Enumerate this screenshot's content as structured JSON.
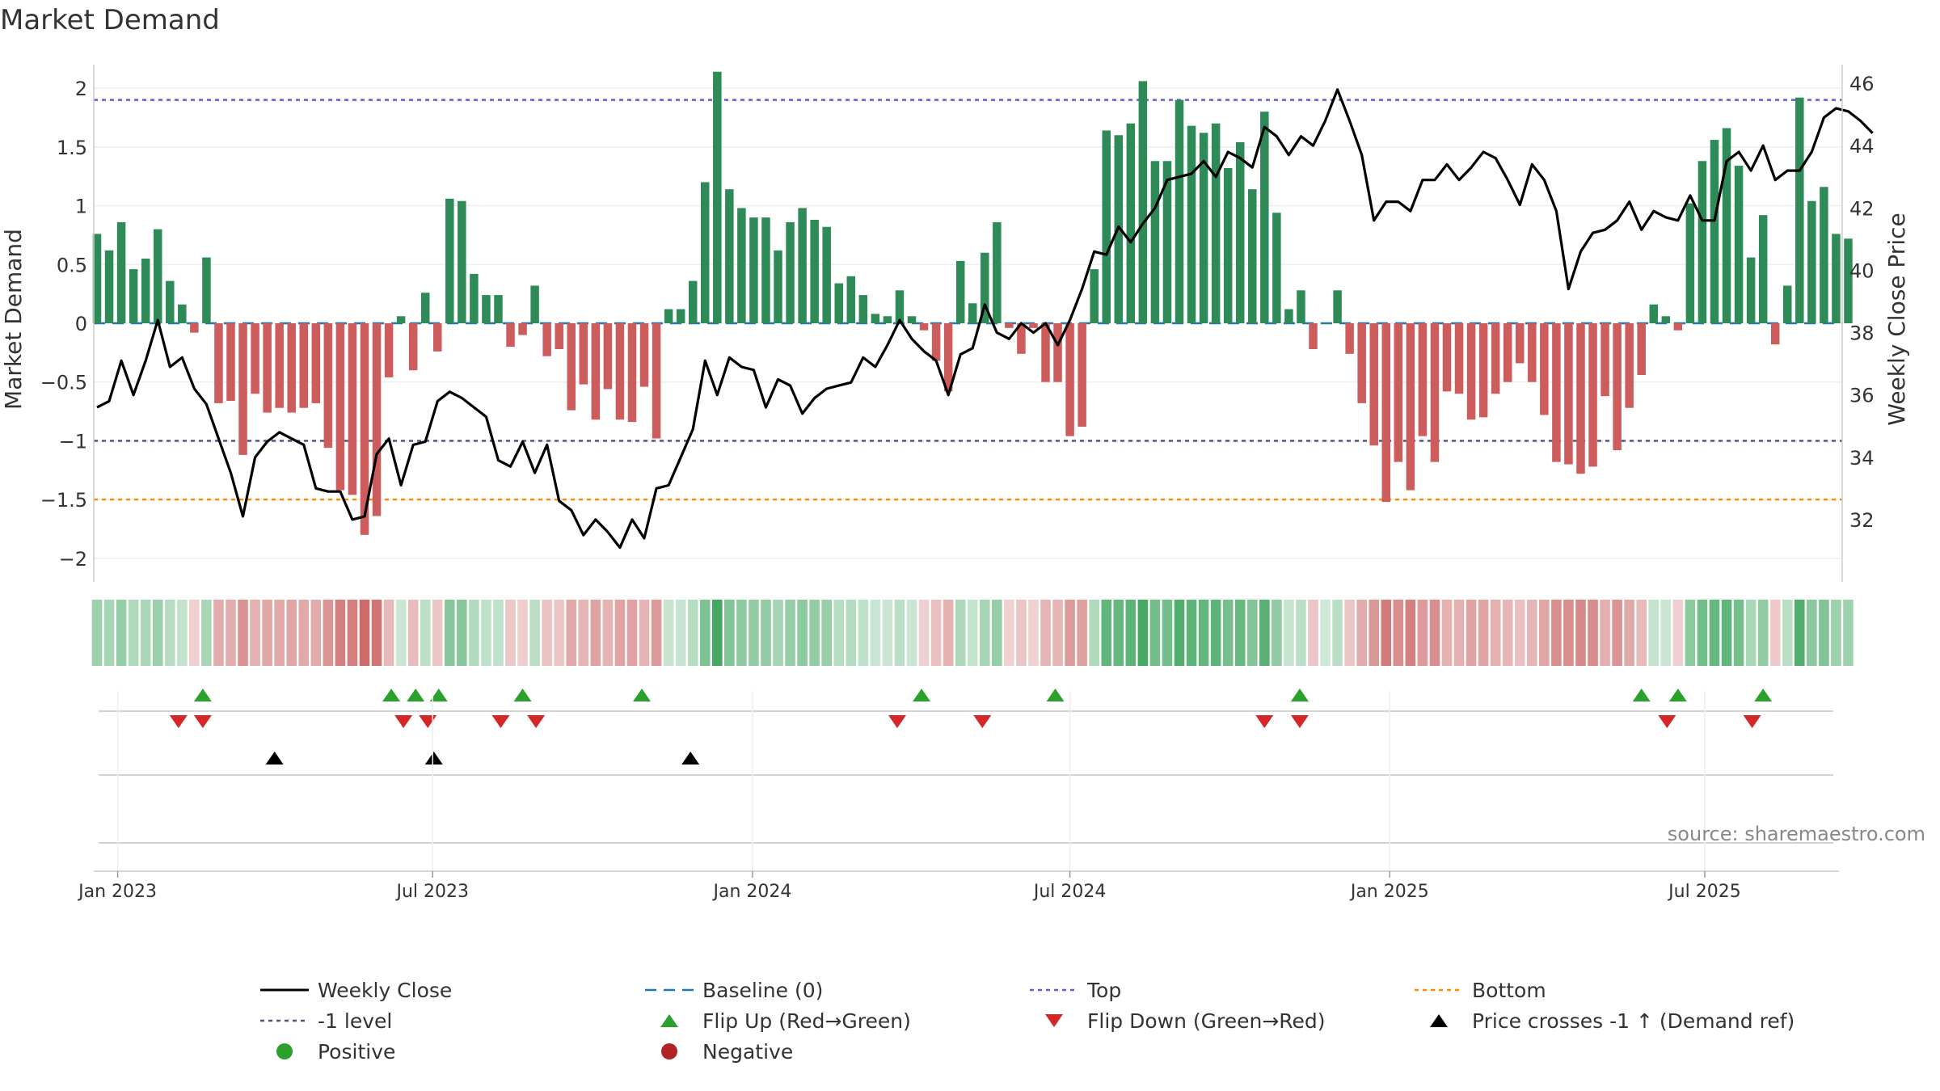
{
  "chart_data": {
    "type": "bar",
    "title": "Market Demand",
    "ylabel_left": "Market Demand",
    "ylabel_right": "Weekly Close Price",
    "source_text": "source: sharemaestro.com",
    "yleft_range": [
      -2.2,
      2.2
    ],
    "yleft_ticks": [
      {
        "v": 2,
        "label": "2"
      },
      {
        "v": 1.5,
        "label": "1.5"
      },
      {
        "v": 1,
        "label": "1"
      },
      {
        "v": 0.5,
        "label": "0.5"
      },
      {
        "v": 0,
        "label": "0"
      },
      {
        "v": -0.5,
        "label": "−0.5"
      },
      {
        "v": -1,
        "label": "−1"
      },
      {
        "v": -1.5,
        "label": "−1.5"
      },
      {
        "v": -2,
        "label": "−2"
      }
    ],
    "yright_range": [
      30.0,
      46.6
    ],
    "yright_ticks": [
      {
        "v": 46,
        "label": "46"
      },
      {
        "v": 44,
        "label": "44"
      },
      {
        "v": 42,
        "label": "42"
      },
      {
        "v": 40,
        "label": "40"
      },
      {
        "v": 38,
        "label": "38"
      },
      {
        "v": 36,
        "label": "36"
      },
      {
        "v": 34,
        "label": "34"
      },
      {
        "v": 32,
        "label": "32"
      }
    ],
    "x_ticks": [
      {
        "week": 1.7,
        "label": "Jan 2023"
      },
      {
        "week": 27.6,
        "label": "Jul 2023"
      },
      {
        "week": 53.9,
        "label": "Jan 2024"
      },
      {
        "week": 80.0,
        "label": "Jul 2024"
      },
      {
        "week": 106.3,
        "label": "Jan 2025"
      },
      {
        "week": 132.2,
        "label": "Jul 2025"
      }
    ],
    "reference_lines": {
      "top": 1.9,
      "bottom": -1.5,
      "minus_one": -1,
      "baseline": 0
    },
    "demand": [
      0.76,
      0.62,
      0.86,
      0.46,
      0.55,
      0.8,
      0.36,
      0.16,
      -0.08,
      0.56,
      -0.68,
      -0.66,
      -1.12,
      -0.6,
      -0.76,
      -0.72,
      -0.76,
      -0.72,
      -0.68,
      -1.06,
      -1.42,
      -1.46,
      -1.8,
      -1.64,
      -0.46,
      0.06,
      -0.4,
      0.26,
      -0.24,
      1.06,
      1.04,
      0.42,
      0.24,
      0.24,
      -0.2,
      -0.1,
      0.32,
      -0.28,
      -0.22,
      -0.74,
      -0.52,
      -0.82,
      -0.56,
      -0.82,
      -0.84,
      -0.54,
      -0.98,
      0.12,
      0.12,
      0.36,
      1.2,
      2.14,
      1.14,
      0.98,
      0.9,
      0.9,
      0.62,
      0.86,
      0.98,
      0.88,
      0.82,
      0.34,
      0.4,
      0.24,
      0.08,
      0.06,
      0.28,
      0.06,
      -0.06,
      -0.32,
      -0.58,
      0.53,
      0.17,
      0.6,
      0.86,
      -0.04,
      -0.26,
      -0.04,
      -0.5,
      -0.5,
      -0.96,
      -0.88,
      0.46,
      1.64,
      1.6,
      1.7,
      2.06,
      1.38,
      1.38,
      1.9,
      1.68,
      1.62,
      1.7,
      1.32,
      1.54,
      1.14,
      1.8,
      0.94,
      0.12,
      0.28,
      -0.22,
      0.0,
      0.28,
      -0.26,
      -0.68,
      -1.04,
      -1.52,
      -1.18,
      -1.42,
      -0.96,
      -1.18,
      -0.58,
      -0.6,
      -0.82,
      -0.8,
      -0.6,
      -0.5,
      -0.34,
      -0.5,
      -0.78,
      -1.18,
      -1.2,
      -1.28,
      -1.22,
      -0.62,
      -1.08,
      -0.72,
      -0.44,
      0.16,
      0.06,
      -0.06,
      1.02,
      1.38,
      1.56,
      1.66,
      1.34,
      0.56,
      0.92,
      -0.18,
      0.32,
      1.92,
      1.04,
      1.16,
      0.76,
      0.72
    ],
    "close": [
      35.6,
      35.8,
      37.1,
      36.0,
      37.1,
      38.4,
      36.9,
      37.2,
      36.2,
      35.7,
      34.6,
      33.5,
      32.1,
      34.0,
      34.5,
      34.8,
      34.6,
      34.4,
      33.0,
      32.9,
      32.9,
      32.0,
      32.1,
      34.1,
      34.6,
      33.1,
      34.4,
      34.5,
      35.8,
      36.1,
      35.9,
      35.6,
      35.3,
      33.9,
      33.7,
      34.5,
      33.5,
      34.4,
      32.6,
      32.3,
      31.5,
      32.0,
      31.6,
      31.1,
      32.0,
      31.4,
      33.0,
      33.1,
      34.0,
      34.9,
      37.1,
      36.0,
      37.2,
      36.9,
      36.8,
      35.6,
      36.5,
      36.3,
      35.4,
      35.9,
      36.2,
      36.3,
      36.4,
      37.2,
      36.9,
      37.6,
      38.4,
      37.8,
      37.4,
      37.1,
      36.0,
      37.3,
      37.5,
      38.9,
      38.0,
      37.8,
      38.3,
      38.0,
      38.3,
      37.6,
      38.4,
      39.4,
      40.6,
      40.5,
      41.4,
      40.9,
      41.5,
      42.0,
      42.9,
      43.0,
      43.1,
      43.5,
      43.0,
      43.8,
      43.6,
      43.3,
      44.6,
      44.3,
      43.7,
      44.3,
      44.0,
      44.8,
      45.8,
      44.8,
      43.7,
      41.6,
      42.2,
      42.2,
      41.9,
      42.9,
      42.9,
      43.4,
      42.9,
      43.3,
      43.8,
      43.6,
      42.9,
      42.1,
      43.4,
      42.9,
      41.9,
      39.4,
      40.6,
      41.2,
      41.3,
      41.6,
      42.2,
      41.3,
      41.9,
      41.7,
      41.6,
      42.4,
      41.6,
      41.6,
      43.5,
      43.8,
      43.2,
      44.0,
      42.9,
      43.2,
      43.2,
      43.8,
      44.9,
      45.2,
      45.1,
      44.8,
      44.4
    ],
    "flip_up_weeks": [
      8.7,
      24.2,
      26.2,
      28.1,
      35.0,
      44.8,
      67.8,
      78.8,
      98.9,
      127.0,
      130.0,
      137.0
    ],
    "flip_down_weeks": [
      6.7,
      8.7,
      25.2,
      27.2,
      33.2,
      36.1,
      65.8,
      72.8,
      96.0,
      98.9,
      129.1,
      136.1
    ],
    "price_cross_weeks": [
      14.6,
      27.7,
      48.8
    ]
  },
  "legend": {
    "items": [
      {
        "key": "weekly_close",
        "label": "Weekly Close"
      },
      {
        "key": "baseline",
        "label": "Baseline (0)"
      },
      {
        "key": "top",
        "label": "Top"
      },
      {
        "key": "bottom",
        "label": "Bottom"
      },
      {
        "key": "minus_one",
        "label": "-1 level"
      },
      {
        "key": "flip_up",
        "label": "Flip Up (Red→Green)"
      },
      {
        "key": "flip_down",
        "label": "Flip Down (Green→Red)"
      },
      {
        "key": "price_cross",
        "label": "Price crosses -1 ↑ (Demand ref)"
      },
      {
        "key": "positive",
        "label": "Positive"
      },
      {
        "key": "negative",
        "label": "Negative"
      }
    ]
  },
  "colors": {
    "positive_bar": "#2e8b57",
    "negative_bar": "#cd5c5c",
    "close_line": "#000000",
    "baseline": "#1f77b4",
    "top_line": "#6a5acd",
    "minus_one_line": "#555577",
    "bottom_line": "#ff8c00",
    "flip_up": "#2ca02c",
    "flip_down": "#d62728",
    "price_cross": "#000000",
    "positive_dot": "#2ca02c",
    "negative_dot": "#b22222"
  }
}
